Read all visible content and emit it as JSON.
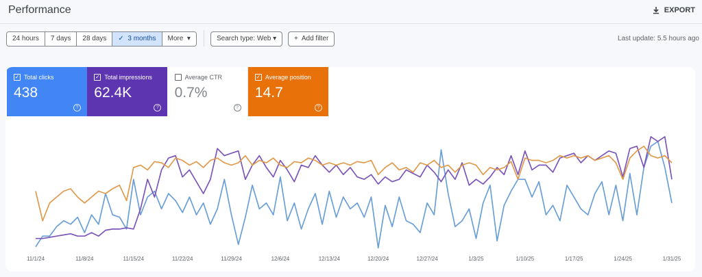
{
  "header": {
    "title": "Performance",
    "export": "EXPORT"
  },
  "toolbar": {
    "ranges": [
      "24 hours",
      "7 days",
      "28 days",
      "3 months",
      "More"
    ],
    "selected_range": 3,
    "search_type": "Search type: Web",
    "add_filter": "Add filter",
    "last_update": "Last update: 5.5 hours ago"
  },
  "metric_cards": [
    {
      "label": "Total clicks",
      "value": "438",
      "checked": true,
      "color": "#4285f4"
    },
    {
      "label": "Total impressions",
      "value": "62.4K",
      "checked": true,
      "color": "#5e35b1"
    },
    {
      "label": "Average CTR",
      "value": "0.7%",
      "checked": false,
      "color": "#ffffff"
    },
    {
      "label": "Average position",
      "value": "14.7",
      "checked": true,
      "color": "#e8710a"
    }
  ],
  "chart_data": {
    "type": "line",
    "ylim": [
      0,
      100
    ],
    "categories": [
      "11/1/24",
      null,
      null,
      null,
      null,
      null,
      null,
      "11/8/24",
      null,
      null,
      null,
      null,
      null,
      null,
      "11/15/24",
      null,
      null,
      null,
      null,
      null,
      null,
      "11/22/24",
      null,
      null,
      null,
      null,
      null,
      null,
      "11/29/24",
      null,
      null,
      null,
      null,
      null,
      null,
      "12/6/24",
      null,
      null,
      null,
      null,
      null,
      null,
      "12/13/24",
      null,
      null,
      null,
      null,
      null,
      null,
      "12/20/24",
      null,
      null,
      null,
      null,
      null,
      null,
      "12/27/24",
      null,
      null,
      null,
      null,
      null,
      null,
      "1/3/25",
      null,
      null,
      null,
      null,
      null,
      null,
      "1/10/25",
      null,
      null,
      null,
      null,
      null,
      null,
      "1/17/25",
      null,
      null,
      null,
      null,
      null,
      null,
      "1/24/25",
      null,
      null,
      null,
      null,
      null,
      null,
      "1/31/25"
    ],
    "series": [
      {
        "color": "#6a9fd6",
        "values": [
          3,
          12,
          12,
          20,
          25,
          22,
          28,
          15,
          30,
          22,
          48,
          30,
          28,
          18,
          60,
          30,
          45,
          50,
          35,
          48,
          42,
          32,
          45,
          30,
          40,
          22,
          35,
          60,
          30,
          5,
          28,
          55,
          35,
          40,
          30,
          62,
          25,
          40,
          18,
          35,
          48,
          22,
          50,
          28,
          45,
          35,
          40,
          28,
          45,
          2,
          38,
          20,
          45,
          25,
          22,
          15,
          40,
          30,
          85,
          48,
          20,
          25,
          35,
          10,
          40,
          55,
          8,
          38,
          50,
          60,
          60,
          45,
          58,
          30,
          38,
          25,
          55,
          45,
          35,
          30,
          48,
          58,
          30,
          55,
          25,
          65,
          30,
          70,
          88,
          92,
          70,
          40
        ]
      },
      {
        "color": "#7b55b8",
        "values": [
          10,
          10,
          11,
          12,
          13,
          14,
          12,
          12,
          15,
          12,
          17,
          18,
          18,
          19,
          18,
          35,
          60,
          45,
          68,
          78,
          80,
          62,
          68,
          58,
          48,
          60,
          86,
          80,
          82,
          84,
          60,
          72,
          80,
          70,
          62,
          76,
          68,
          58,
          72,
          70,
          80,
          72,
          66,
          72,
          64,
          70,
          62,
          60,
          64,
          56,
          62,
          58,
          60,
          68,
          65,
          62,
          72,
          66,
          58,
          68,
          60,
          74,
          55,
          60,
          56,
          62,
          70,
          64,
          80,
          64,
          84,
          68,
          72,
          72,
          66,
          78,
          80,
          82,
          74,
          80,
          76,
          80,
          84,
          82,
          62,
          86,
          88,
          70,
          96,
          92,
          96,
          60
        ]
      },
      {
        "color": "#e09a4c",
        "values": [
          50,
          25,
          40,
          45,
          50,
          52,
          45,
          40,
          45,
          50,
          48,
          52,
          55,
          42,
          70,
          72,
          68,
          75,
          74,
          70,
          78,
          76,
          72,
          75,
          70,
          76,
          78,
          74,
          72,
          74,
          80,
          72,
          76,
          74,
          78,
          72,
          70,
          75,
          74,
          78,
          76,
          72,
          74,
          72,
          74,
          72,
          75,
          74,
          76,
          64,
          70,
          74,
          68,
          70,
          66,
          74,
          72,
          76,
          70,
          72,
          66,
          72,
          74,
          72,
          64,
          70,
          68,
          70,
          75,
          60,
          78,
          76,
          76,
          74,
          76,
          80,
          78,
          80,
          78,
          80,
          76,
          78,
          80,
          74,
          60,
          78,
          84,
          88,
          80,
          78,
          80,
          74
        ]
      }
    ]
  }
}
